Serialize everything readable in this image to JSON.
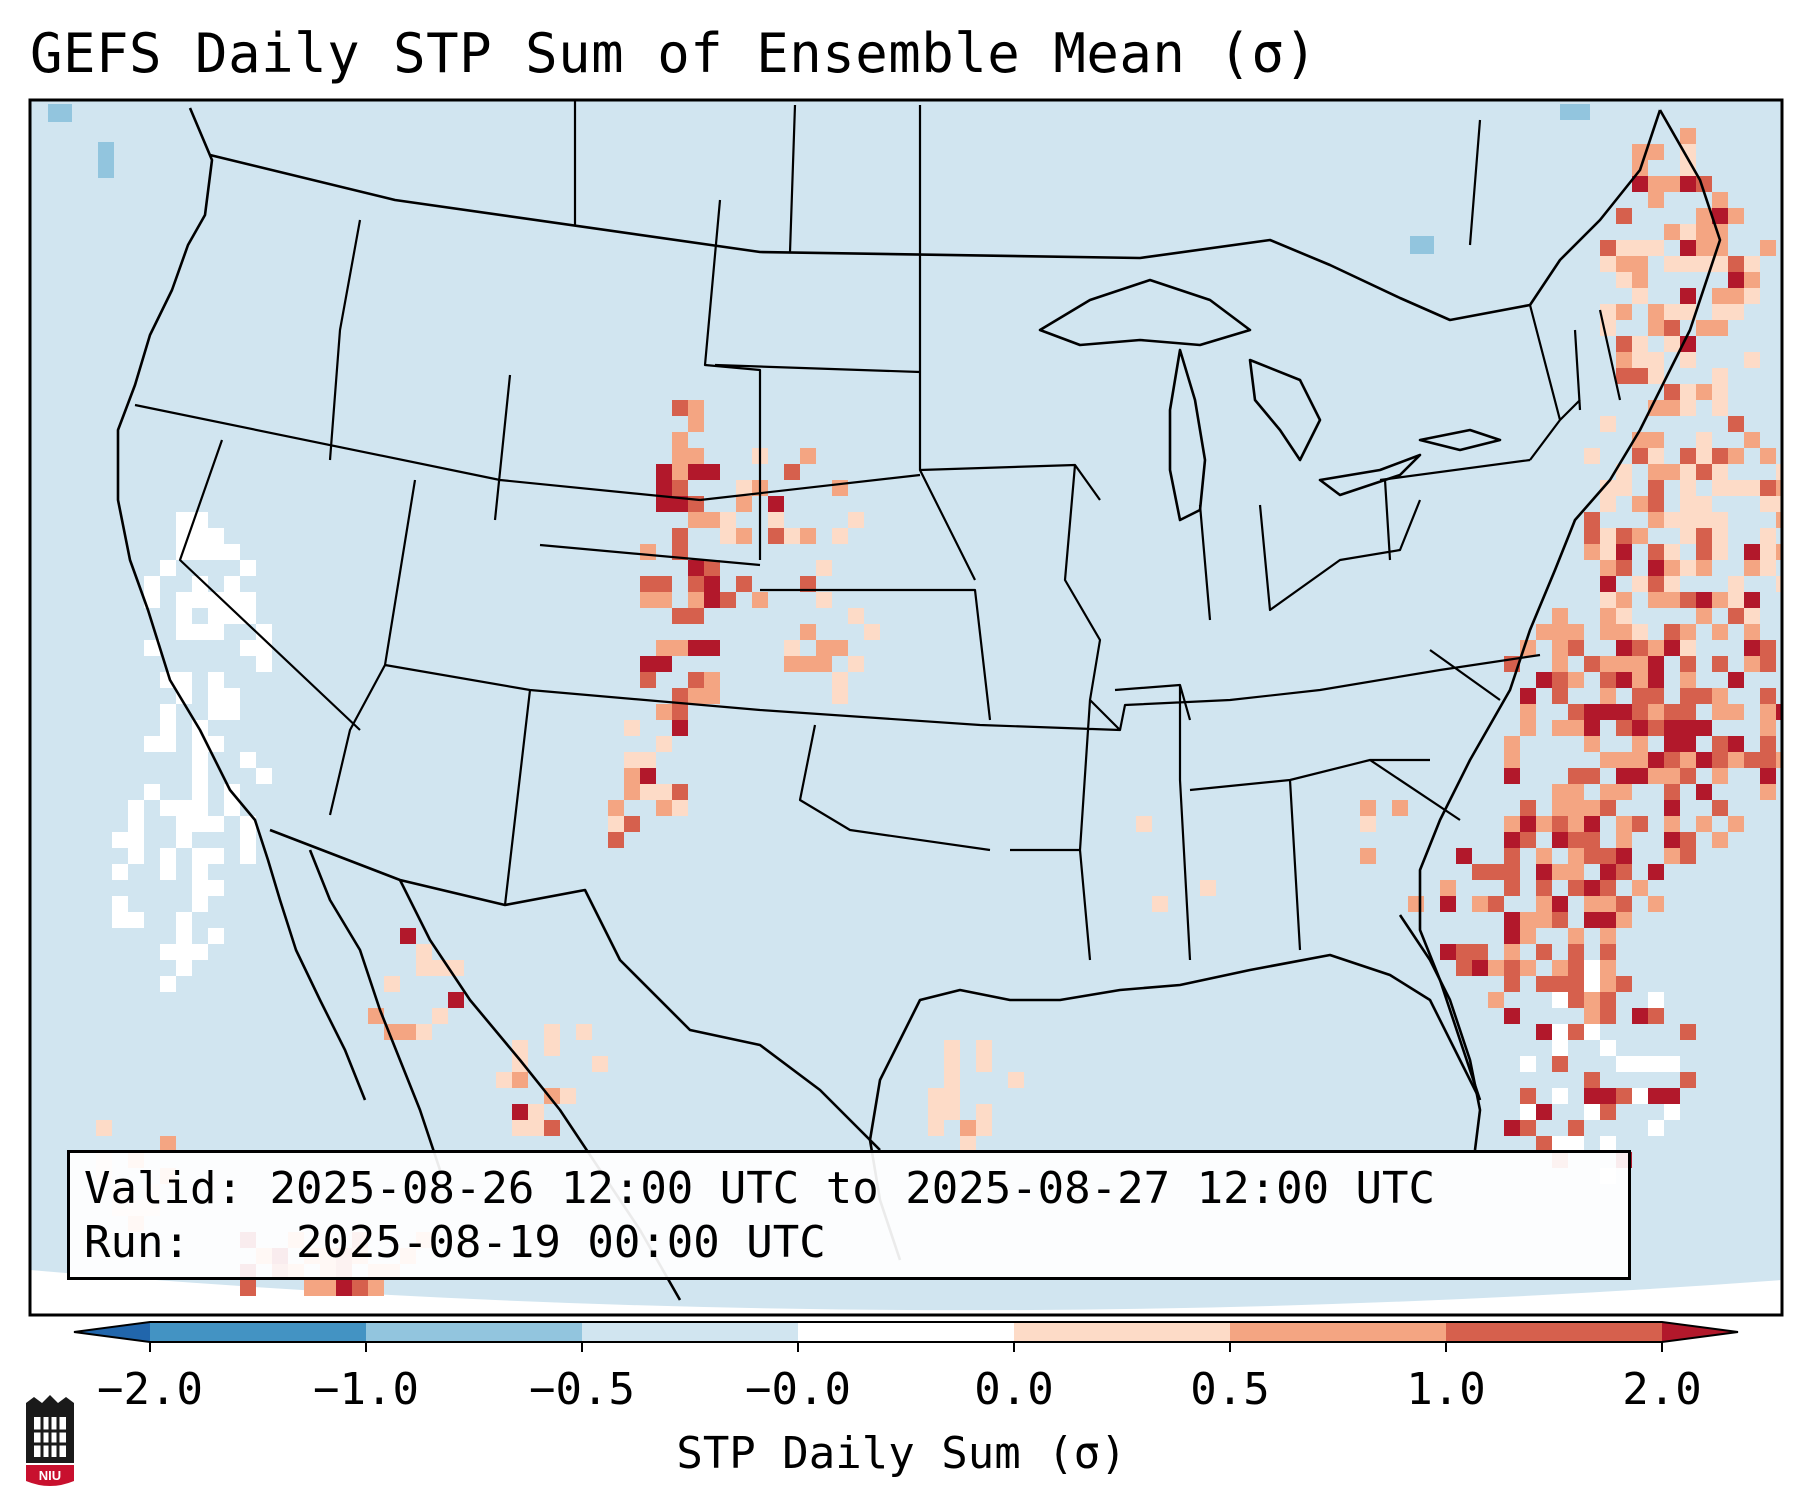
{
  "title": "GEFS Daily STP Sum of Ensemble Mean (σ)",
  "info": {
    "valid_label": "Valid:",
    "valid_value": "2025-08-26 12:00 UTC to 2025-08-27 12:00 UTC",
    "run_label": "Run:",
    "run_value": "2025-08-19 00:00 UTC"
  },
  "colorbar": {
    "label": "STP Daily Sum (σ)",
    "ticks": [
      "−2.0",
      "−1.0",
      "−0.5",
      "−0.0",
      "0.0",
      "0.5",
      "1.0",
      "2.0"
    ],
    "colors": [
      "#4393c3",
      "#92c5de",
      "#d1e5f0",
      "#ffffff",
      "#fddbc7",
      "#f4a582",
      "#d6604d",
      "#b2182b"
    ],
    "extend": "both"
  },
  "map": {
    "background_color": "#d1e5f0",
    "region": "Contiguous United States, northern Mexico, Gulf of Mexico, western Atlantic"
  },
  "logo": {
    "text": "NIU"
  }
}
